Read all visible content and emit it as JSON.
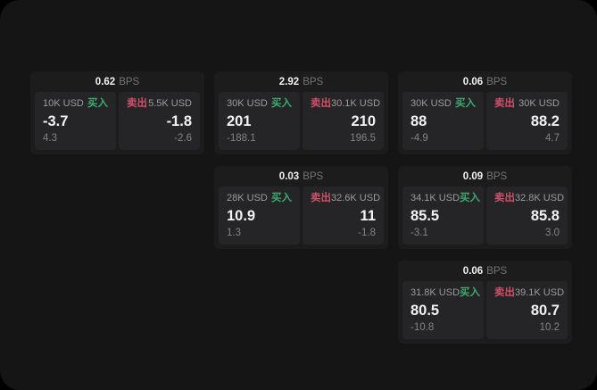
{
  "theme": {
    "window_bg": "#151515",
    "card_bg": "#1c1c1d",
    "panel_bg": "#252528",
    "text_primary": "#f2f2f2",
    "text_secondary": "#9b9b9b",
    "text_muted": "#757575",
    "buy_color": "#3cab6e",
    "sell_color": "#cf5068"
  },
  "labels": {
    "bps_unit": "BPS",
    "buy": "买入",
    "sell": "卖出"
  },
  "cards": [
    {
      "bps": "0.62",
      "buy": {
        "size": "10K USD",
        "value": "-3.7",
        "sub": "4.3"
      },
      "sell": {
        "size": "5.5K USD",
        "value": "-1.8",
        "sub": "-2.6"
      }
    },
    {
      "bps": "2.92",
      "buy": {
        "size": "30K USD",
        "value": "201",
        "sub": "-188.1"
      },
      "sell": {
        "size": "30.1K USD",
        "value": "210",
        "sub": "196.5"
      }
    },
    {
      "bps": "0.06",
      "buy": {
        "size": "30K USD",
        "value": "88",
        "sub": "-4.9"
      },
      "sell": {
        "size": "30K USD",
        "value": "88.2",
        "sub": "4.7"
      }
    },
    {
      "bps": "0.03",
      "buy": {
        "size": "28K USD",
        "value": "10.9",
        "sub": "1.3"
      },
      "sell": {
        "size": "32.6K USD",
        "value": "11",
        "sub": "-1.8"
      }
    },
    {
      "bps": "0.09",
      "buy": {
        "size": "34.1K USD",
        "value": "85.5",
        "sub": "-3.1"
      },
      "sell": {
        "size": "32.8K USD",
        "value": "85.8",
        "sub": "3.0"
      }
    },
    {
      "bps": "0.06",
      "buy": {
        "size": "31.8K USD",
        "value": "80.5",
        "sub": "-10.8"
      },
      "sell": {
        "size": "39.1K USD",
        "value": "80.7",
        "sub": "10.2"
      }
    }
  ]
}
